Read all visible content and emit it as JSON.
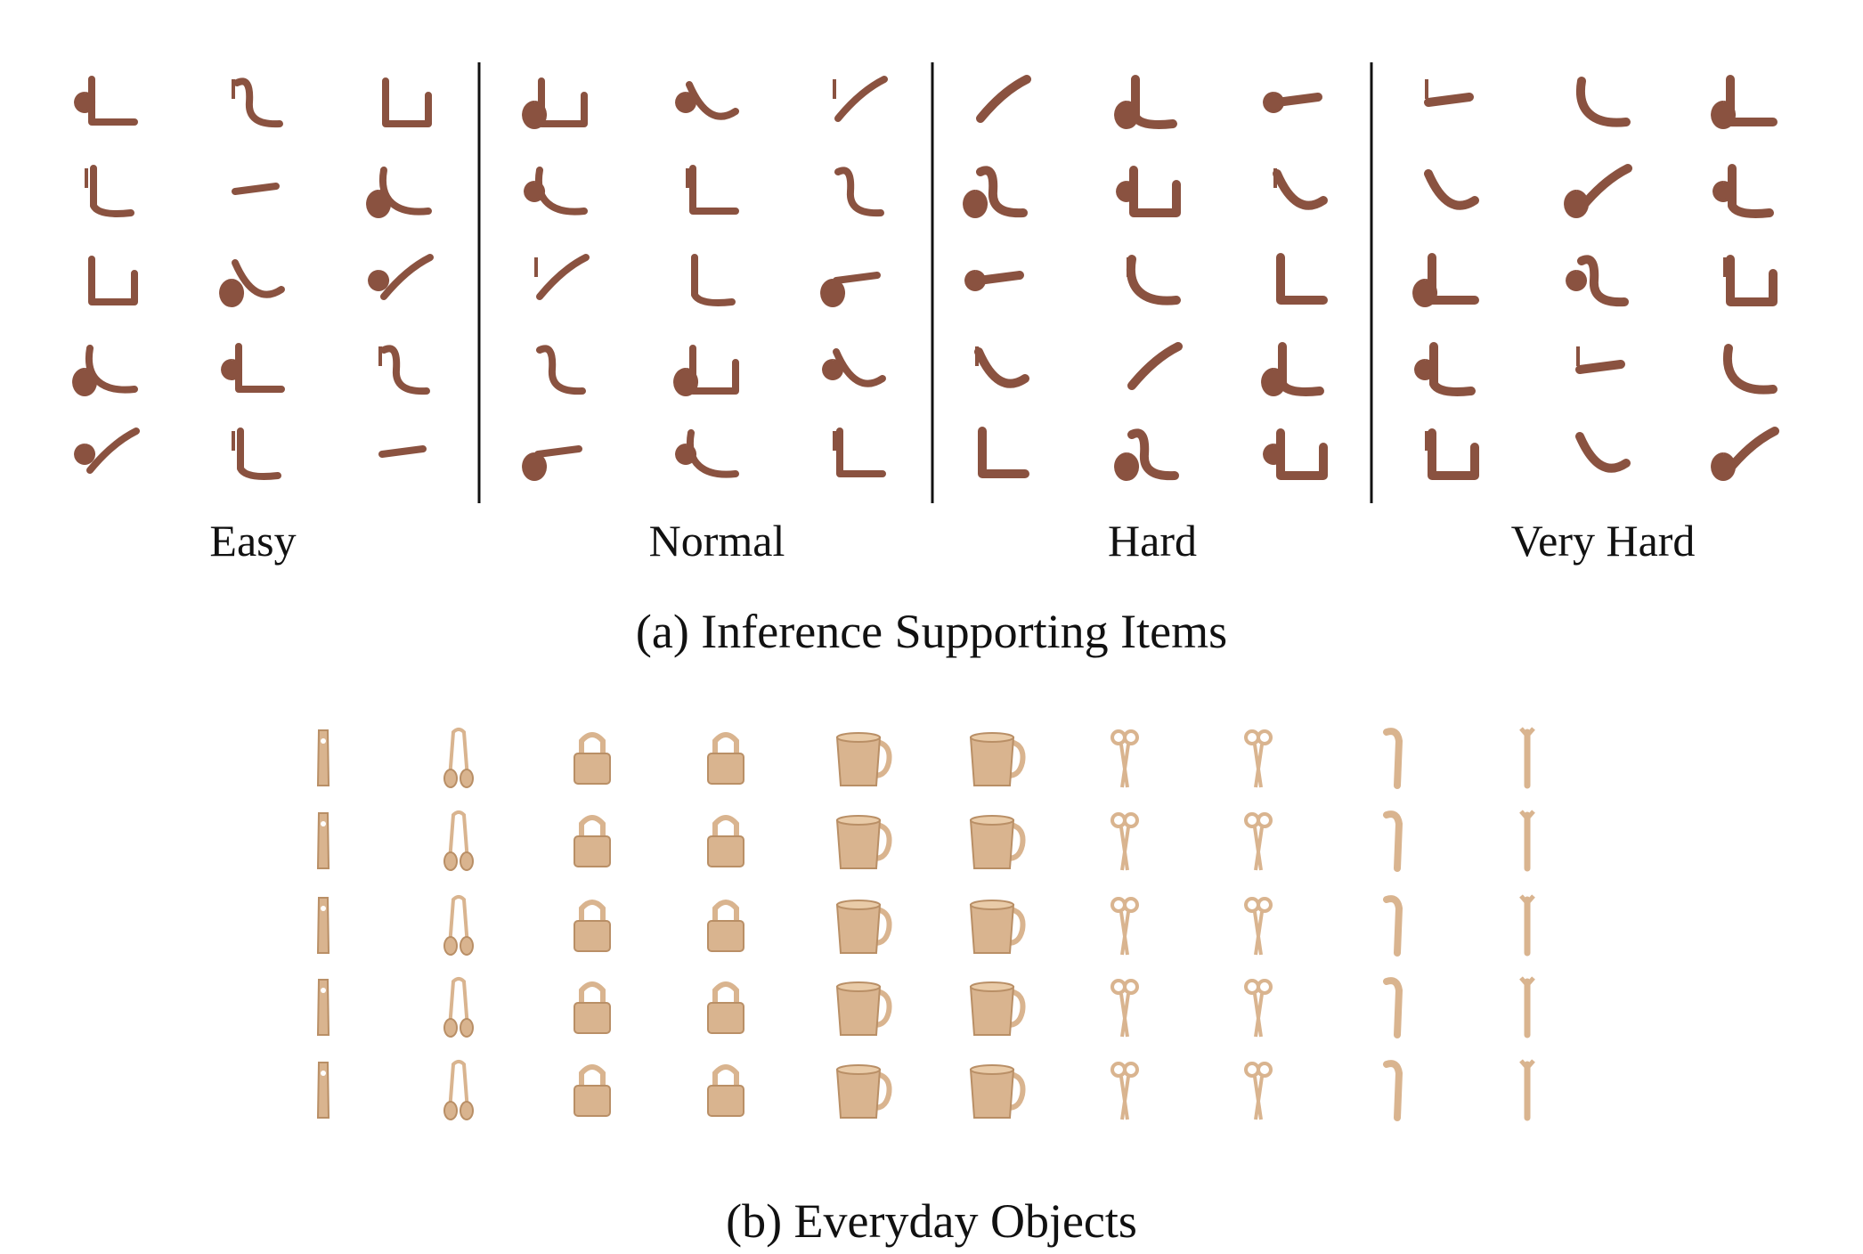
{
  "part_a": {
    "caption": "(a) Inference Supporting Items",
    "color": "#8a5240",
    "groups": [
      {
        "label": "Easy"
      },
      {
        "label": "Normal"
      },
      {
        "label": "Hard"
      },
      {
        "label": "Very Hard"
      }
    ]
  },
  "part_b": {
    "caption": "(b) Everyday Objects",
    "color": "#d9b48f",
    "columns": [
      "bottle-opener-icon",
      "headphones-icon",
      "padlock-icon",
      "padlock-icon",
      "mug-icon",
      "mug-icon",
      "scissors-icon",
      "scissors-icon",
      "tool-icon",
      "wrench-icon"
    ]
  }
}
